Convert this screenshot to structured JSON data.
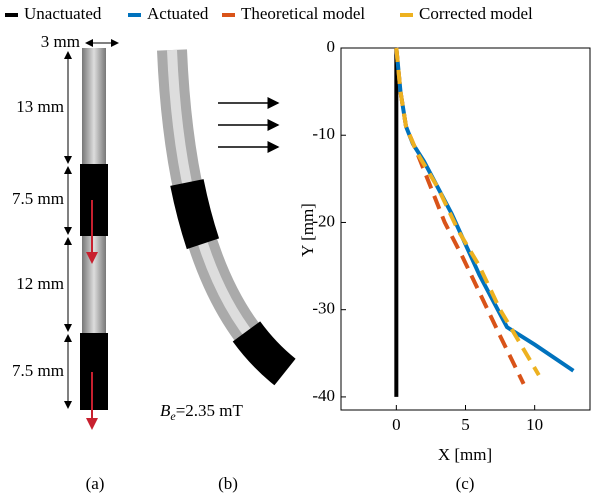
{
  "chart_data": {
    "type": "line",
    "xlabel": "X [mm]",
    "ylabel": "Y [mm]",
    "xlim": [
      -4,
      14
    ],
    "ylim": [
      -41.5,
      0
    ],
    "xticks": [
      0,
      5,
      10
    ],
    "yticks": [
      0,
      -10,
      -20,
      -30,
      -40
    ],
    "series": [
      {
        "name": "Unactuated",
        "color": "#000000",
        "style": "solid",
        "x": [
          0,
          0
        ],
        "values": [
          0,
          -40
        ]
      },
      {
        "name": "Actuated",
        "color": "#0072bd",
        "style": "solid",
        "x": [
          0,
          0.3,
          0.7,
          1.2,
          2,
          3,
          4,
          5,
          6,
          7,
          8,
          10,
          12.8
        ],
        "values": [
          0,
          -5,
          -9,
          -11,
          -13,
          -16,
          -19,
          -22.5,
          -26,
          -29,
          -32,
          -34,
          -37
        ]
      },
      {
        "name": "Theoretical model",
        "color": "#d95319",
        "style": "dashed",
        "x": [
          0,
          0.3,
          0.7,
          1.5,
          2.5,
          3.5,
          4.8,
          6,
          7.5,
          9.2
        ],
        "values": [
          0,
          -5,
          -9,
          -12,
          -16,
          -20,
          -24,
          -28,
          -33,
          -38.5
        ]
      },
      {
        "name": "Corrected model",
        "color": "#edb120",
        "style": "dashed",
        "x": [
          0,
          0.3,
          0.7,
          1.5,
          3,
          4.5,
          6,
          7.5,
          9,
          10.3
        ],
        "values": [
          0,
          -5,
          -9,
          -12,
          -16,
          -21,
          -25,
          -30,
          -34,
          -37.5
        ]
      }
    ]
  },
  "figure": {
    "dimensions": [
      "3 mm",
      "13 mm",
      "7.5 mm",
      "12 mm",
      "7.5 mm"
    ],
    "field": {
      "symbol": "B",
      "subscript": "e",
      "value": "=2.35 mT"
    },
    "panels": [
      "(a)",
      "(b)",
      "(c)"
    ]
  }
}
